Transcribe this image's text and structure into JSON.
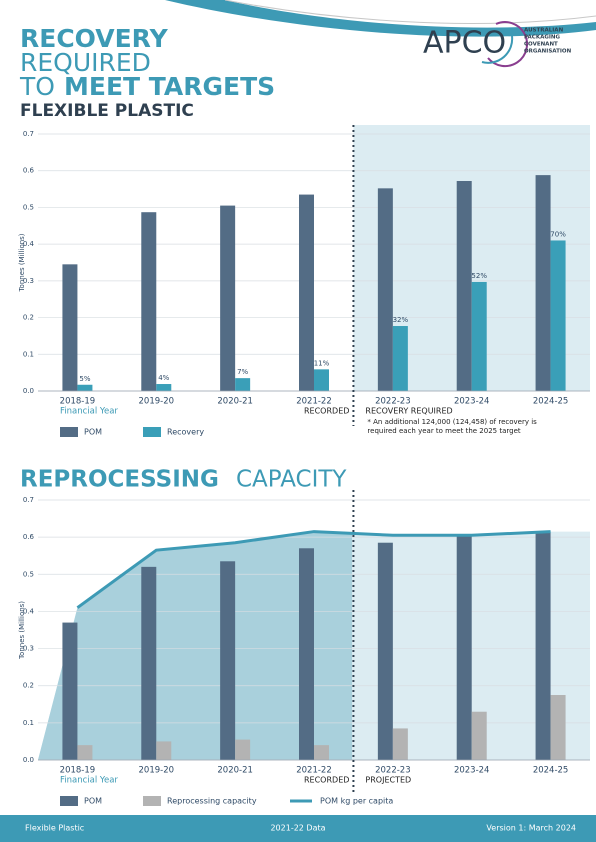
{
  "header": {
    "line1": "RECOVERY",
    "line2": "REQUIRED",
    "line3a": "TO",
    "line3b": "MEET TARGETS",
    "subtitle": "FLEXIBLE PLASTIC"
  },
  "logo": {
    "mark": "APCO",
    "name_lines": [
      "AUSTRALIAN",
      "PACKAGING",
      "COVENANT",
      "ORGANISATION"
    ]
  },
  "chart_data": [
    {
      "type": "bar",
      "y_label": "Tonnes (Millions)",
      "categories": [
        "2018-19",
        "2019-20",
        "2020-21",
        "2021-22",
        "2022-23",
        "2023-24",
        "2024-25"
      ],
      "series": [
        {
          "name": "POM",
          "color": "#536c85",
          "type": "bar",
          "values": [
            0.345,
            0.487,
            0.505,
            0.535,
            0.552,
            0.572,
            0.588
          ]
        },
        {
          "name": "Recovery",
          "color": "#3a9fb8",
          "type": "bar",
          "values": [
            0.017,
            0.019,
            0.035,
            0.059,
            0.177,
            0.297,
            0.41
          ],
          "rate_labels": [
            "5%",
            "4%",
            "7%",
            "11%",
            "32%",
            "52%",
            "70%"
          ]
        }
      ],
      "ylim": [
        0,
        0.7
      ],
      "yticks": [
        {
          "value": 0,
          "label": "0.0"
        },
        0.1,
        0.2,
        0.3,
        0.4,
        0.5,
        0.6,
        0.7
      ],
      "grid": true,
      "annotations": {
        "x_label": "Financial Year",
        "left_phase": "RECORDED",
        "right_phase": "RECOVERY REQUIRED",
        "footnote": [
          "* An additional 124,000 (124,458) of recovery is",
          "required each year to meet the 2025 target"
        ]
      }
    },
    {
      "type": "bar",
      "title": {
        "bold": "REPROCESSING",
        "light": "CAPACITY"
      },
      "y_label": "Tonnes (Millions)",
      "categories": [
        "2018-19",
        "2019-20",
        "2020-21",
        "2021-22",
        "2022-23",
        "2023-24",
        "2024-25"
      ],
      "series": [
        {
          "name": "POM",
          "color": "#536c85",
          "type": "bar",
          "values": [
            0.37,
            0.52,
            0.535,
            0.57,
            0.585,
            0.605,
            0.615
          ]
        },
        {
          "name": "Reprocessing capacity",
          "color": "#b3b3b3",
          "type": "bar",
          "values": [
            0.04,
            0.05,
            0.055,
            0.04,
            0.085,
            0.13,
            0.175
          ]
        },
        {
          "name": "POM kg per capita",
          "color": "#3d9ab5",
          "type": "line",
          "values": [
            0.41,
            0.565,
            0.585,
            0.615,
            0.605,
            0.605,
            0.615
          ]
        }
      ],
      "ylim": [
        0,
        0.7
      ],
      "yticks": [
        {
          "value": 0,
          "label": "0.0"
        },
        0.1,
        0.2,
        0.3,
        0.4,
        0.5,
        0.6,
        0.7
      ],
      "grid": true,
      "annotations": {
        "x_label": "Financial Year",
        "left_phase": "RECORDED",
        "right_phase": "PROJECTED"
      }
    }
  ],
  "footer": {
    "left": "Flexible Plastic",
    "center": "2021-22 Data",
    "right": "Version 1: March 2024"
  }
}
